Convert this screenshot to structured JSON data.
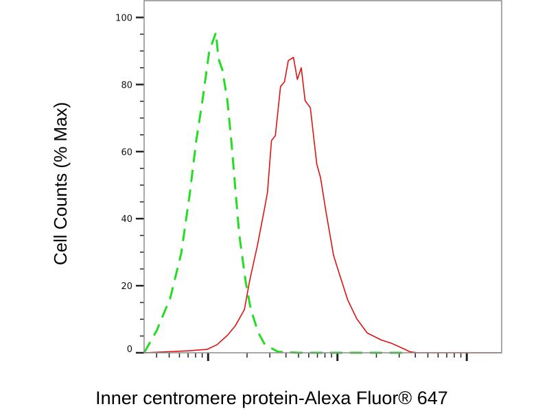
{
  "chart_data": {
    "type": "line",
    "title": "",
    "xlabel": "Inner centromere protein-Alexa Fluor® 647",
    "ylabel": "Cell Counts (% Max)",
    "x_scale": "log",
    "xlim": [
      32,
      18600
    ],
    "ylim": [
      0,
      105
    ],
    "y_ticks": [
      0,
      20,
      40,
      60,
      80,
      100
    ],
    "y_tick_labels": [
      "0",
      "20",
      "40",
      "60",
      "80",
      "100"
    ],
    "x_major_ticks": [
      100,
      1000,
      10000
    ],
    "x_tick_labels_shown": false,
    "grid": false,
    "legend": "none",
    "series": [
      {
        "style": "dashed",
        "color": "#22dd22",
        "x": [
          32,
          40,
          51,
          62,
          72,
          81,
          91,
          102,
          115,
          120,
          129,
          141,
          151,
          162,
          174,
          195,
          214,
          245,
          275,
          347,
          501,
          3162
        ],
        "y": [
          0,
          6.6,
          16.4,
          29.7,
          47.2,
          63.3,
          75.9,
          89.9,
          95.5,
          87.8,
          84.3,
          75.2,
          63.3,
          49.3,
          35.3,
          21.3,
          12.9,
          5.9,
          2.4,
          0.3,
          0,
          0
        ]
      },
      {
        "style": "solid",
        "color": "#e01010",
        "x": [
          32,
          71,
          98,
          117,
          141,
          162,
          191,
          209,
          240,
          275,
          288,
          309,
          331,
          363,
          389,
          417,
          457,
          490,
          525,
          562,
          617,
          692,
          741,
          813,
          933,
          1023,
          1202,
          1413,
          1698,
          2188,
          2630,
          3162,
          3631,
          4169,
          18600
        ],
        "y": [
          0,
          0.6,
          1,
          2.4,
          5.2,
          8,
          12.9,
          21.3,
          31.8,
          43.7,
          47.9,
          63.3,
          64.7,
          79.4,
          80.8,
          87.1,
          88.1,
          81.5,
          85,
          75.2,
          73.1,
          56.3,
          52.1,
          42.3,
          29,
          24.1,
          15.7,
          10.1,
          5.9,
          3.8,
          2.8,
          1.4,
          0.3,
          0,
          0
        ]
      }
    ]
  }
}
